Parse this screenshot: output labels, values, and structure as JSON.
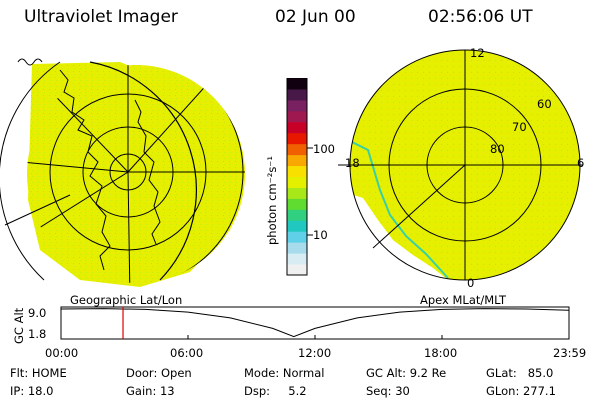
{
  "header": {
    "title": "Ultraviolet Imager",
    "date": "02 Jun 00",
    "time": "02:56:06 UT"
  },
  "colorbar": {
    "label": "photon cm⁻²s⁻¹",
    "ticks": [
      "100",
      "10"
    ],
    "colors": [
      "#f0f0f0",
      "#d8ecf4",
      "#a8dcec",
      "#60d0e8",
      "#20c8c0",
      "#30d080",
      "#60dc30",
      "#a8e818",
      "#e4f000",
      "#f8e000",
      "#f8a800",
      "#f06000",
      "#e81800",
      "#c80028",
      "#a01850",
      "#782060",
      "#481848",
      "#100010"
    ]
  },
  "left_map": {
    "caption": "Geographic Lat/Lon",
    "fill_color": "#e4f000"
  },
  "right_map": {
    "caption": "Apex MLat/MLT",
    "fill_color": "#e4f000",
    "lat_labels": [
      "60",
      "70",
      "80"
    ],
    "mlt_labels": [
      "12",
      "18",
      "6",
      "0"
    ]
  },
  "timeline": {
    "ylabel": "GC Alt",
    "yticks": [
      "9.0",
      "1.8"
    ],
    "xticks": [
      "00:00",
      "06:00",
      "12:00",
      "18:00",
      "23:59"
    ],
    "marker_hours": 2.93,
    "series": [
      {
        "h": 0,
        "alt": 9.0
      },
      {
        "h": 2,
        "alt": 9.1
      },
      {
        "h": 4,
        "alt": 8.9
      },
      {
        "h": 6,
        "alt": 8.2
      },
      {
        "h": 8,
        "alt": 6.7
      },
      {
        "h": 10,
        "alt": 4.0
      },
      {
        "h": 11,
        "alt": 1.9
      },
      {
        "h": 12,
        "alt": 4.0
      },
      {
        "h": 14,
        "alt": 6.7
      },
      {
        "h": 16,
        "alt": 8.2
      },
      {
        "h": 18,
        "alt": 8.9
      },
      {
        "h": 20,
        "alt": 9.1
      },
      {
        "h": 22,
        "alt": 9.0
      },
      {
        "h": 23.98,
        "alt": 8.7
      }
    ]
  },
  "info": {
    "flt": "Flt: HOME",
    "ip": "IP: 18.0",
    "door": "Door: Open",
    "gain": "Gain: 13",
    "mode": "Mode: Normal",
    "dsp": "Dsp:     5.2",
    "gcalt": "GC Alt: 9.2 Re",
    "seq": "Seq: 30",
    "glat": "GLat:   85.0",
    "glon": "GLon: 277.1"
  }
}
